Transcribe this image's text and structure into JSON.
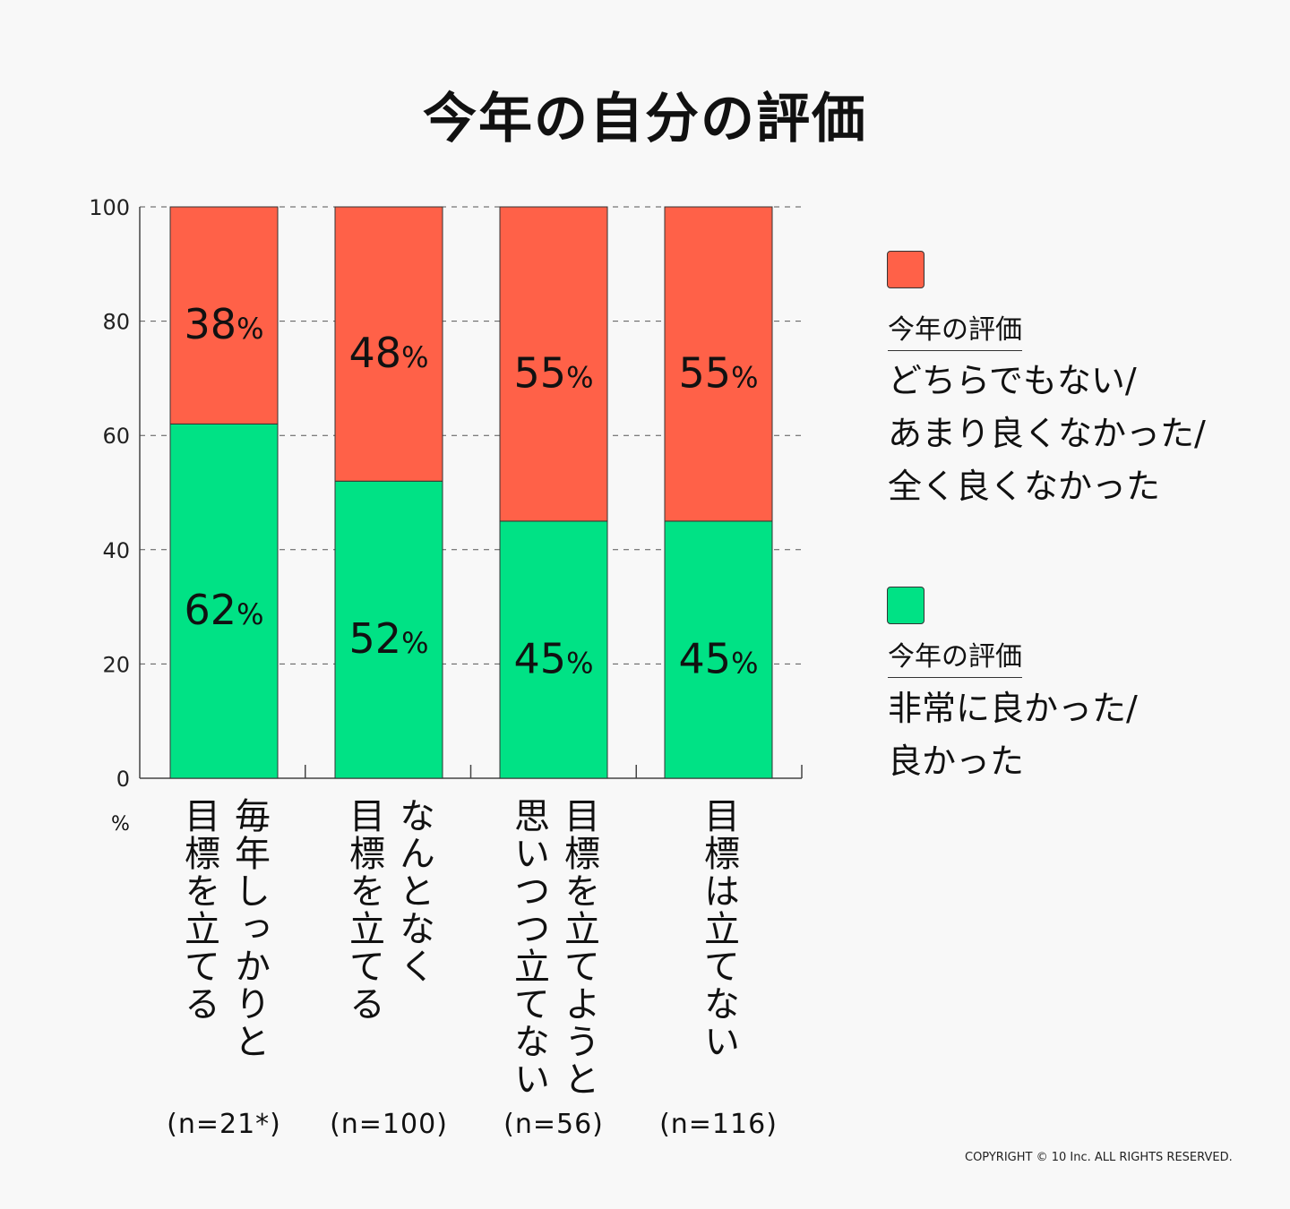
{
  "colors": {
    "negative": "#ff6148",
    "positive": "#00e285",
    "background": "#f8f8f8"
  },
  "chart_data": {
    "type": "bar",
    "stacked": true,
    "title": "今年の自分の評価",
    "ylabel": "%",
    "ylim": [
      0,
      100
    ],
    "yticks": [
      0,
      20,
      40,
      60,
      80,
      100
    ],
    "grid": true,
    "legend_placement": "right",
    "categories": [
      {
        "lines": [
          "毎年しっかりと",
          "目標を立てる"
        ],
        "n": "(n=21*)"
      },
      {
        "lines": [
          "なんとなく",
          "目標を立てる"
        ],
        "n": "(n=100)"
      },
      {
        "lines": [
          "目標を立てようと",
          "思いつつ立てない"
        ],
        "n": "(n=56)"
      },
      {
        "lines": [
          "目標は立てない"
        ],
        "n": "(n=116)"
      }
    ],
    "series": [
      {
        "name": "今年の評価 非常に良かった/良かった",
        "color": "#00e285",
        "values": [
          62,
          52,
          45,
          45
        ]
      },
      {
        "name": "今年の評価 どちらでもない/あまり良くなかった/全く良くなかった",
        "color": "#ff6148",
        "values": [
          38,
          48,
          55,
          55
        ]
      }
    ]
  },
  "legend": [
    {
      "head": "今年の評価",
      "body": "どちらでもない/\nあまり良くなかった/\n全く良くなかった",
      "color": "#ff6148"
    },
    {
      "head": "今年の評価",
      "body": "非常に良かった/\n良かった",
      "color": "#00e285"
    }
  ],
  "copyright": "COPYRIGHT © 10 Inc. ALL RIGHTS RESERVED."
}
